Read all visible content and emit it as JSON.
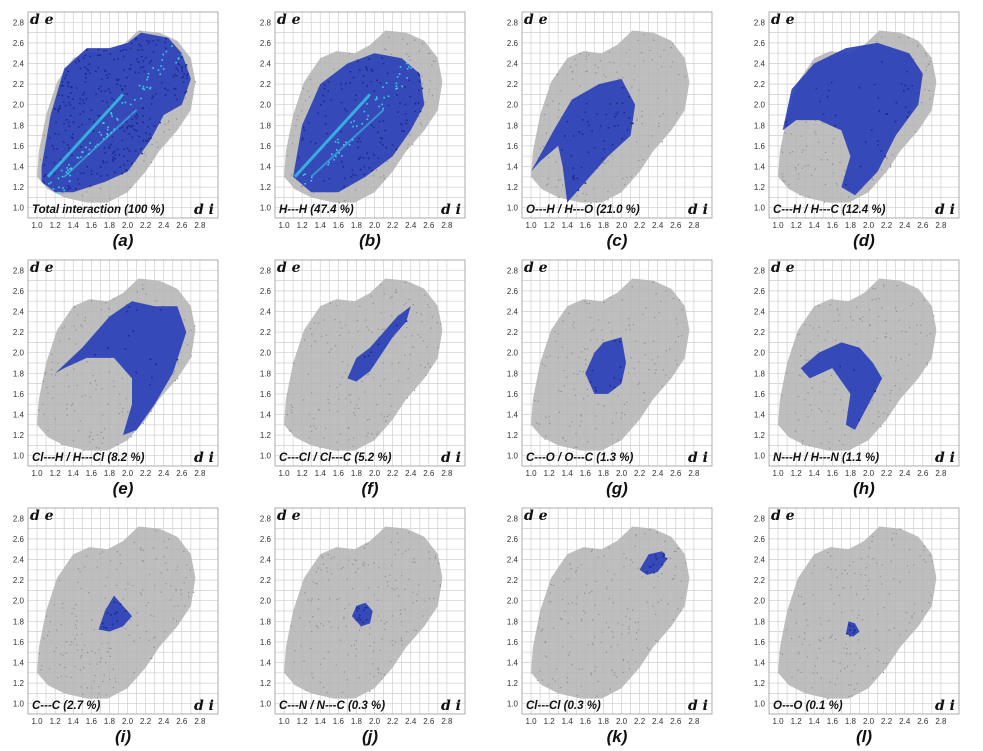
{
  "figure": {
    "colors": {
      "grey_envelope": "#b3b3b3",
      "contact_blue": "#2a3fb8",
      "contact_cyan": "#38d0e8",
      "grid": "#cfcfcf"
    }
  },
  "chart_data": [
    {
      "type": "scatter",
      "panel": "(a)",
      "label": "Total interaction (100 %)",
      "percent": 100,
      "ylabel": "d e",
      "xlabel": "d i",
      "xlim": [
        0.9,
        3.0
      ],
      "ylim": [
        0.9,
        2.9
      ],
      "x_ticks": [
        "1.0",
        "1.2",
        "1.4",
        "1.6",
        "1.8",
        "2.0",
        "2.2",
        "2.4",
        "2.6",
        "2.8"
      ],
      "y_ticks": [
        "1.0",
        "1.2",
        "1.4",
        "1.6",
        "1.8",
        "2.0",
        "2.2",
        "2.4",
        "2.6",
        "2.8"
      ],
      "highlight_outline": [
        [
          1.05,
          1.4
        ],
        [
          1.15,
          1.9
        ],
        [
          1.3,
          2.35
        ],
        [
          1.55,
          2.55
        ],
        [
          1.8,
          2.55
        ],
        [
          2.0,
          2.6
        ],
        [
          2.15,
          2.7
        ],
        [
          2.45,
          2.65
        ],
        [
          2.6,
          2.5
        ],
        [
          2.7,
          2.25
        ],
        [
          2.6,
          2.0
        ],
        [
          2.4,
          1.9
        ],
        [
          2.25,
          1.65
        ],
        [
          2.0,
          1.35
        ],
        [
          1.75,
          1.25
        ],
        [
          1.4,
          1.15
        ],
        [
          1.2,
          1.15
        ],
        [
          1.05,
          1.25
        ]
      ]
    },
    {
      "type": "scatter",
      "panel": "(b)",
      "label": "H---H  (47.4 %)",
      "percent": 47.4,
      "ylabel": "d e",
      "xlabel": "d i",
      "xlim": [
        0.9,
        3.0
      ],
      "ylim": [
        0.9,
        2.9
      ],
      "x_ticks": [
        "1.0",
        "1.2",
        "1.4",
        "1.6",
        "1.8",
        "2.0",
        "2.2",
        "2.4",
        "2.6",
        "2.8"
      ],
      "y_ticks": [
        "1.0",
        "1.2",
        "1.4",
        "1.6",
        "1.8",
        "2.0",
        "2.2",
        "2.4",
        "2.6",
        "2.8"
      ],
      "highlight_outline": [
        [
          1.1,
          1.3
        ],
        [
          1.2,
          1.8
        ],
        [
          1.4,
          2.2
        ],
        [
          1.7,
          2.4
        ],
        [
          2.0,
          2.5
        ],
        [
          2.3,
          2.45
        ],
        [
          2.5,
          2.3
        ],
        [
          2.55,
          2.0
        ],
        [
          2.4,
          1.75
        ],
        [
          2.2,
          1.5
        ],
        [
          1.9,
          1.3
        ],
        [
          1.6,
          1.15
        ],
        [
          1.3,
          1.15
        ]
      ]
    },
    {
      "type": "scatter",
      "panel": "(c)",
      "label": "O---H / H---O  (21.0 %)",
      "percent": 21.0,
      "ylabel": "d e",
      "xlabel": "d i",
      "xlim": [
        0.9,
        3.0
      ],
      "ylim": [
        0.9,
        2.9
      ],
      "x_ticks": [
        "1.0",
        "1.2",
        "1.4",
        "1.6",
        "1.8",
        "2.0",
        "2.2",
        "2.4",
        "2.6",
        "2.8"
      ],
      "y_ticks": [
        "1.0",
        "1.2",
        "1.4",
        "1.6",
        "1.8",
        "2.0",
        "2.2",
        "2.4",
        "2.6",
        "2.8"
      ],
      "highlight_outline": [
        [
          1.0,
          1.35
        ],
        [
          1.25,
          1.75
        ],
        [
          1.45,
          2.05
        ],
        [
          1.75,
          2.2
        ],
        [
          2.0,
          2.25
        ],
        [
          2.15,
          2.0
        ],
        [
          2.1,
          1.7
        ],
        [
          1.85,
          1.5
        ],
        [
          1.6,
          1.25
        ],
        [
          1.4,
          1.05
        ],
        [
          1.35,
          1.4
        ],
        [
          1.3,
          1.6
        ],
        [
          1.1,
          1.45
        ]
      ]
    },
    {
      "type": "scatter",
      "panel": "(d)",
      "label": "C---H / H---C  (12.4 %)",
      "percent": 12.4,
      "ylabel": "d e",
      "xlabel": "d i",
      "xlim": [
        0.9,
        3.0
      ],
      "ylim": [
        0.9,
        2.9
      ],
      "x_ticks": [
        "1.0",
        "1.2",
        "1.4",
        "1.6",
        "1.8",
        "2.0",
        "2.2",
        "2.4",
        "2.6",
        "2.8"
      ],
      "y_ticks": [
        "1.0",
        "1.2",
        "1.4",
        "1.6",
        "1.8",
        "2.0",
        "2.2",
        "2.4",
        "2.6",
        "2.8"
      ],
      "highlight_outline": [
        [
          1.05,
          1.75
        ],
        [
          1.15,
          2.15
        ],
        [
          1.4,
          2.4
        ],
        [
          1.75,
          2.55
        ],
        [
          2.1,
          2.6
        ],
        [
          2.45,
          2.5
        ],
        [
          2.6,
          2.3
        ],
        [
          2.55,
          2.0
        ],
        [
          2.3,
          1.7
        ],
        [
          2.1,
          1.35
        ],
        [
          1.85,
          1.12
        ],
        [
          1.7,
          1.2
        ],
        [
          1.8,
          1.5
        ],
        [
          1.7,
          1.75
        ],
        [
          1.45,
          1.85
        ],
        [
          1.2,
          1.85
        ]
      ]
    },
    {
      "type": "scatter",
      "panel": "(e)",
      "label": "Cl---H / H---Cl  (8.2 %)",
      "percent": 8.2,
      "ylabel": "d e",
      "xlabel": "d i",
      "xlim": [
        0.9,
        3.0
      ],
      "ylim": [
        0.9,
        2.9
      ],
      "x_ticks": [
        "1.0",
        "1.2",
        "1.4",
        "1.6",
        "1.8",
        "2.0",
        "2.2",
        "2.4",
        "2.6",
        "2.8"
      ],
      "y_ticks": [
        "1.0",
        "1.2",
        "1.4",
        "1.6",
        "1.8",
        "2.0",
        "2.2",
        "2.4",
        "2.6",
        "2.8"
      ],
      "highlight_outline": [
        [
          1.2,
          1.8
        ],
        [
          1.5,
          2.05
        ],
        [
          1.8,
          2.35
        ],
        [
          2.05,
          2.5
        ],
        [
          2.3,
          2.45
        ],
        [
          2.55,
          2.45
        ],
        [
          2.65,
          2.2
        ],
        [
          2.5,
          1.8
        ],
        [
          2.3,
          1.5
        ],
        [
          2.1,
          1.25
        ],
        [
          1.95,
          1.2
        ],
        [
          2.05,
          1.5
        ],
        [
          2.05,
          1.75
        ],
        [
          1.85,
          1.95
        ],
        [
          1.55,
          1.95
        ],
        [
          1.3,
          1.85
        ]
      ]
    },
    {
      "type": "scatter",
      "panel": "(f)",
      "label": "C---Cl / Cl---C  (5.2 %)",
      "percent": 5.2,
      "ylabel": "d e",
      "xlabel": "d i",
      "xlim": [
        0.9,
        3.0
      ],
      "ylim": [
        0.9,
        2.9
      ],
      "x_ticks": [
        "1.0",
        "1.2",
        "1.4",
        "1.6",
        "1.8",
        "2.0",
        "2.2",
        "2.4",
        "2.6",
        "2.8"
      ],
      "y_ticks": [
        "1.0",
        "1.2",
        "1.4",
        "1.6",
        "1.8",
        "2.0",
        "2.2",
        "2.4",
        "2.6",
        "2.8"
      ],
      "highlight_outline": [
        [
          1.7,
          1.75
        ],
        [
          1.8,
          1.95
        ],
        [
          1.95,
          2.05
        ],
        [
          2.1,
          2.2
        ],
        [
          2.25,
          2.35
        ],
        [
          2.4,
          2.45
        ],
        [
          2.35,
          2.3
        ],
        [
          2.2,
          2.15
        ],
        [
          2.05,
          1.95
        ],
        [
          1.95,
          1.82
        ],
        [
          1.8,
          1.72
        ]
      ]
    },
    {
      "type": "scatter",
      "panel": "(g)",
      "label": "C---O / O---C  (1.3 %)",
      "percent": 1.3,
      "ylabel": "d e",
      "xlabel": "d i",
      "xlim": [
        0.9,
        3.0
      ],
      "ylim": [
        0.9,
        2.9
      ],
      "x_ticks": [
        "1.0",
        "1.2",
        "1.4",
        "1.6",
        "1.8",
        "2.0",
        "2.2",
        "2.4",
        "2.6",
        "2.8"
      ],
      "y_ticks": [
        "1.0",
        "1.2",
        "1.4",
        "1.6",
        "1.8",
        "2.0",
        "2.2",
        "2.4",
        "2.6",
        "2.8"
      ],
      "highlight_outline": [
        [
          1.6,
          1.8
        ],
        [
          1.7,
          2.0
        ],
        [
          1.8,
          2.1
        ],
        [
          2.0,
          2.15
        ],
        [
          2.05,
          1.9
        ],
        [
          2.0,
          1.7
        ],
        [
          1.85,
          1.6
        ],
        [
          1.7,
          1.6
        ]
      ]
    },
    {
      "type": "scatter",
      "panel": "(h)",
      "label": "N---H / H---N  (1.1 %)",
      "percent": 1.1,
      "ylabel": "d e",
      "xlabel": "d i",
      "xlim": [
        0.9,
        3.0
      ],
      "ylim": [
        0.9,
        2.9
      ],
      "x_ticks": [
        "1.0",
        "1.2",
        "1.4",
        "1.6",
        "1.8",
        "2.0",
        "2.2",
        "2.4",
        "2.6",
        "2.8"
      ],
      "y_ticks": [
        "1.0",
        "1.2",
        "1.4",
        "1.6",
        "1.8",
        "2.0",
        "2.2",
        "2.4",
        "2.6",
        "2.8"
      ],
      "highlight_outline": [
        [
          1.25,
          1.85
        ],
        [
          1.45,
          2.0
        ],
        [
          1.7,
          2.1
        ],
        [
          1.9,
          2.05
        ],
        [
          2.05,
          1.9
        ],
        [
          2.15,
          1.75
        ],
        [
          2.0,
          1.5
        ],
        [
          1.85,
          1.25
        ],
        [
          1.75,
          1.3
        ],
        [
          1.8,
          1.6
        ],
        [
          1.6,
          1.85
        ],
        [
          1.35,
          1.75
        ]
      ]
    },
    {
      "type": "scatter",
      "panel": "(i)",
      "label": "C---C  (2.7 %)",
      "percent": 2.7,
      "ylabel": "d e",
      "xlabel": "d i",
      "xlim": [
        0.9,
        3.0
      ],
      "ylim": [
        0.9,
        2.9
      ],
      "x_ticks": [
        "1.0",
        "1.2",
        "1.4",
        "1.6",
        "1.8",
        "2.0",
        "2.2",
        "2.4",
        "2.6",
        "2.8"
      ],
      "y_ticks": [
        "1.0",
        "1.2",
        "1.4",
        "1.6",
        "1.8",
        "2.0",
        "2.2",
        "2.4",
        "2.6",
        "2.8"
      ],
      "highlight_outline": [
        [
          1.68,
          1.72
        ],
        [
          1.75,
          1.9
        ],
        [
          1.85,
          2.05
        ],
        [
          1.95,
          1.95
        ],
        [
          2.05,
          1.85
        ],
        [
          1.95,
          1.75
        ],
        [
          1.8,
          1.7
        ]
      ]
    },
    {
      "type": "scatter",
      "panel": "(j)",
      "label": "C---N / N---C  (0.3 %)",
      "percent": 0.3,
      "ylabel": "d e",
      "xlabel": "d i",
      "xlim": [
        0.9,
        3.0
      ],
      "ylim": [
        0.9,
        2.9
      ],
      "x_ticks": [
        "1.0",
        "1.2",
        "1.4",
        "1.6",
        "1.8",
        "2.0",
        "2.2",
        "2.4",
        "2.6",
        "2.8"
      ],
      "y_ticks": [
        "1.0",
        "1.2",
        "1.4",
        "1.6",
        "1.8",
        "2.0",
        "2.2",
        "2.4",
        "2.6",
        "2.8"
      ],
      "highlight_outline": [
        [
          1.75,
          1.85
        ],
        [
          1.8,
          1.95
        ],
        [
          1.9,
          1.98
        ],
        [
          1.98,
          1.9
        ],
        [
          1.95,
          1.78
        ],
        [
          1.85,
          1.75
        ]
      ]
    },
    {
      "type": "scatter",
      "panel": "(k)",
      "label": "Cl---Cl  (0.3 %)",
      "percent": 0.3,
      "ylabel": "d e",
      "xlabel": "d i",
      "xlim": [
        0.9,
        3.0
      ],
      "ylim": [
        0.9,
        2.9
      ],
      "x_ticks": [
        "1.0",
        "1.2",
        "1.4",
        "1.6",
        "1.8",
        "2.0",
        "2.2",
        "2.4",
        "2.6",
        "2.8"
      ],
      "y_ticks": [
        "1.0",
        "1.2",
        "1.4",
        "1.6",
        "1.8",
        "2.0",
        "2.2",
        "2.4",
        "2.6",
        "2.8"
      ],
      "highlight_outline": [
        [
          2.2,
          2.3
        ],
        [
          2.3,
          2.45
        ],
        [
          2.45,
          2.48
        ],
        [
          2.5,
          2.4
        ],
        [
          2.4,
          2.28
        ],
        [
          2.28,
          2.25
        ]
      ]
    },
    {
      "type": "scatter",
      "panel": "(l)",
      "label": "O---O  (0.1 %)",
      "percent": 0.1,
      "ylabel": "d e",
      "xlabel": "d i",
      "xlim": [
        0.9,
        3.0
      ],
      "ylim": [
        0.9,
        2.9
      ],
      "x_ticks": [
        "1.0",
        "1.2",
        "1.4",
        "1.6",
        "1.8",
        "2.0",
        "2.2",
        "2.4",
        "2.6",
        "2.8"
      ],
      "y_ticks": [
        "1.0",
        "1.2",
        "1.4",
        "1.6",
        "1.8",
        "2.0",
        "2.2",
        "2.4",
        "2.6",
        "2.8"
      ],
      "highlight_outline": [
        [
          1.75,
          1.68
        ],
        [
          1.78,
          1.8
        ],
        [
          1.85,
          1.78
        ],
        [
          1.9,
          1.7
        ],
        [
          1.83,
          1.65
        ]
      ]
    }
  ]
}
